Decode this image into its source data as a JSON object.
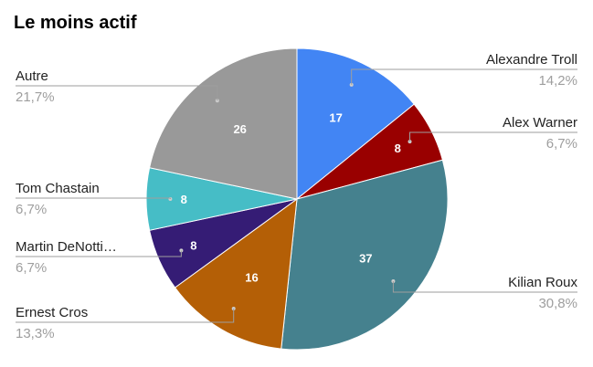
{
  "chart_data": {
    "type": "pie",
    "title": "Le moins actif",
    "slices": [
      {
        "name": "Alexandre Troll",
        "value": 17,
        "percent_label": "14,2%",
        "color": "#4285f4",
        "side": "right"
      },
      {
        "name": "Alex Warner",
        "value": 8,
        "percent_label": "6,7%",
        "color": "#990000",
        "side": "right"
      },
      {
        "name": "Kilian Roux",
        "value": 37,
        "percent_label": "30,8%",
        "color": "#45818e",
        "side": "right"
      },
      {
        "name": "Ernest Cros",
        "value": 16,
        "percent_label": "13,3%",
        "color": "#b45f06",
        "side": "left"
      },
      {
        "name": "Martin DeNotti…",
        "value": 8,
        "percent_label": "6,7%",
        "color": "#351c75",
        "side": "left"
      },
      {
        "name": "Tom Chastain",
        "value": 8,
        "percent_label": "6,7%",
        "color": "#46bdc6",
        "side": "left"
      },
      {
        "name": "Autre",
        "value": 26,
        "percent_label": "21,7%",
        "color": "#999999",
        "side": "left"
      }
    ],
    "legend": "callout-labels"
  }
}
